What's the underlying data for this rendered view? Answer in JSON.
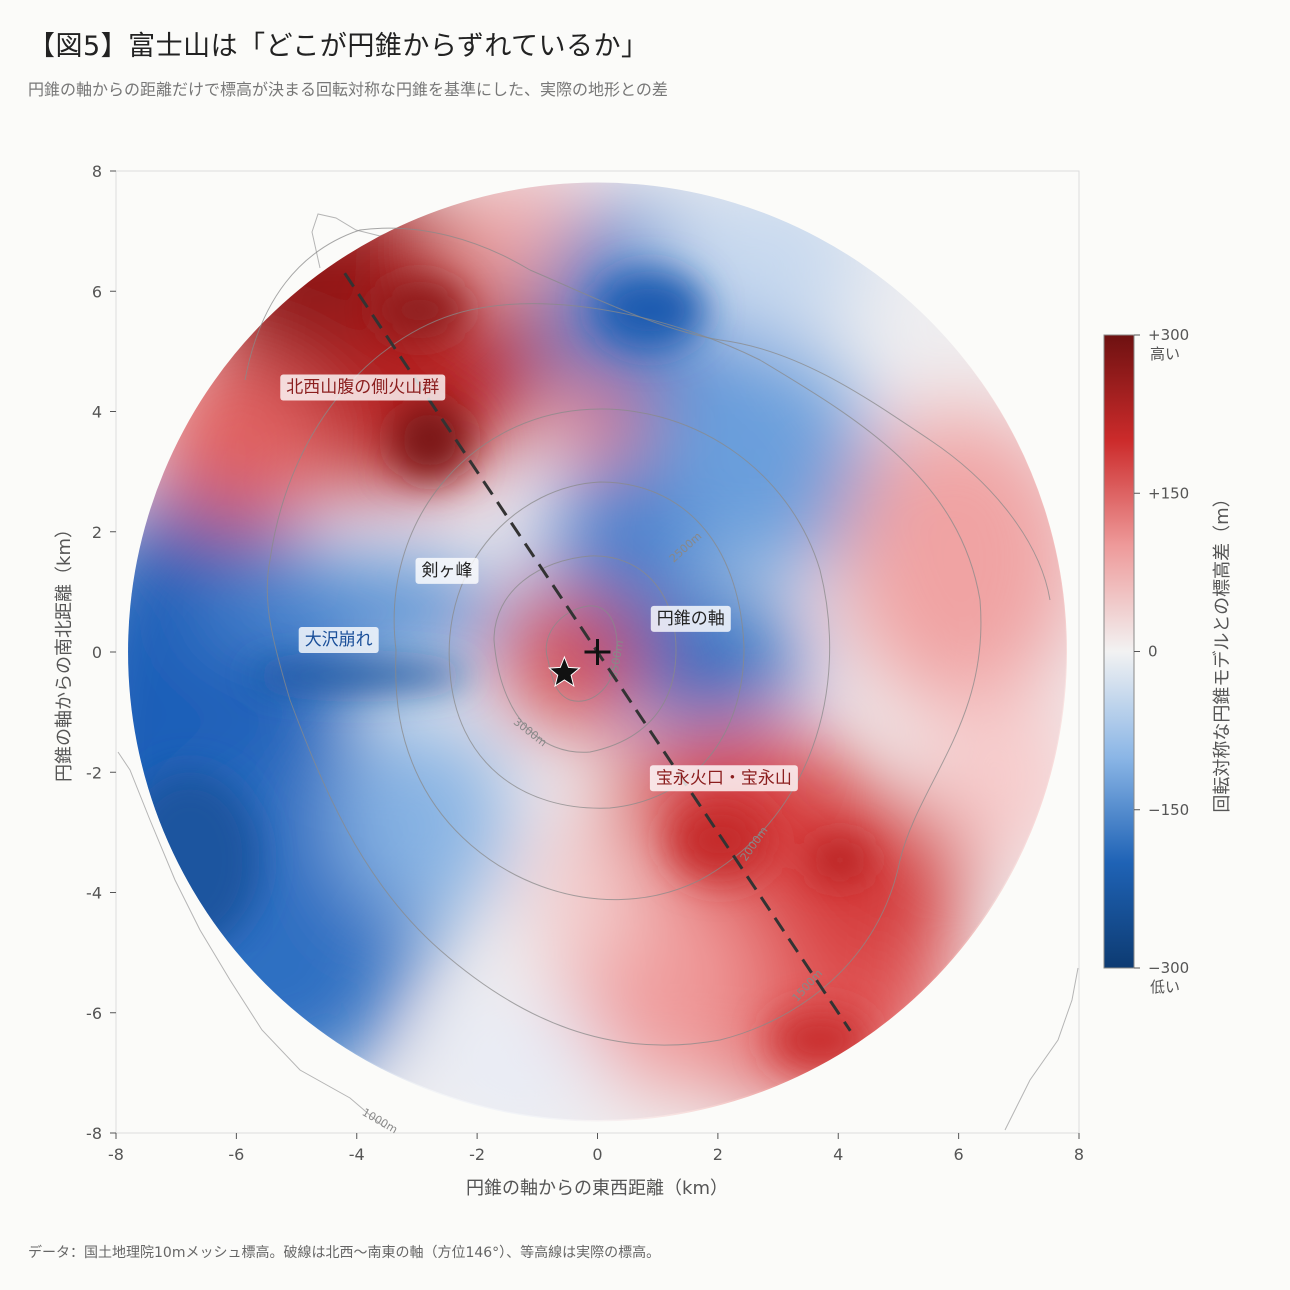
{
  "title": "【図5】富士山は「どこが円錐からずれているか」",
  "subtitle": "円錐の軸からの距離だけで標高が決まる回転対称な円錐を基準にした、実際の地形との差",
  "footer": "データ：国土地理院10mメッシュ標高。破線は北西〜南東の軸（方位146°）、等高線は実際の標高。",
  "chart_data": {
    "type": "heatmap",
    "xlabel": "円錐の軸からの東西距離（km）",
    "ylabel": "円錐の軸からの南北距離（km）",
    "xlim": [
      -8,
      8
    ],
    "ylim": [
      -8,
      8
    ],
    "xticks": [
      -8,
      -6,
      -4,
      -2,
      0,
      2,
      4,
      6,
      8
    ],
    "yticks": [
      -8,
      -6,
      -4,
      -2,
      0,
      2,
      4,
      6,
      8
    ],
    "radius_km": 7.8,
    "colorbar": {
      "title": "回転対称な円錐モデルとの標高差（m）",
      "min": -300,
      "max": 300,
      "ticks": [
        {
          "value": 300,
          "label": "+300"
        },
        {
          "value": 150,
          "label": "+150"
        },
        {
          "value": 0,
          "label": "0"
        },
        {
          "value": -150,
          "label": "−150"
        },
        {
          "value": -300,
          "label": "−300"
        }
      ],
      "high_label": "高い",
      "low_label": "低い",
      "colors": [
        "#0d3b72",
        "#1f63b6",
        "#8bb6e6",
        "#f2f2f2",
        "#ee9a9a",
        "#cc2b2b",
        "#6e1111"
      ]
    },
    "axis_line": {
      "x1": -4.2,
      "y1": 6.3,
      "x2": 4.2,
      "y2": -6.3
    },
    "cone_axis_marker": {
      "x": 0,
      "y": 0,
      "label": "円錐の軸"
    },
    "summit_marker": {
      "x": -0.55,
      "y": -0.35,
      "label": "剣ヶ峰"
    },
    "contour_labels": [
      "2500m",
      "3500m",
      "3000m",
      "2000m",
      "1500m",
      "1000m"
    ],
    "annotations": [
      {
        "text": "北西山腹の側火山群",
        "x": -3.9,
        "y": 4.4,
        "color": "#8b1e1e"
      },
      {
        "text": "剣ヶ峰",
        "x": -2.5,
        "y": 1.35,
        "color": "#222222"
      },
      {
        "text": "円錐の軸",
        "x": 1.55,
        "y": 0.55,
        "color": "#222222"
      },
      {
        "text": "大沢崩れ",
        "x": -4.3,
        "y": 0.2,
        "color": "#1a4f99"
      },
      {
        "text": "宝永火口・宝永山",
        "x": 2.1,
        "y": -2.1,
        "color": "#8b1e1e"
      }
    ]
  }
}
